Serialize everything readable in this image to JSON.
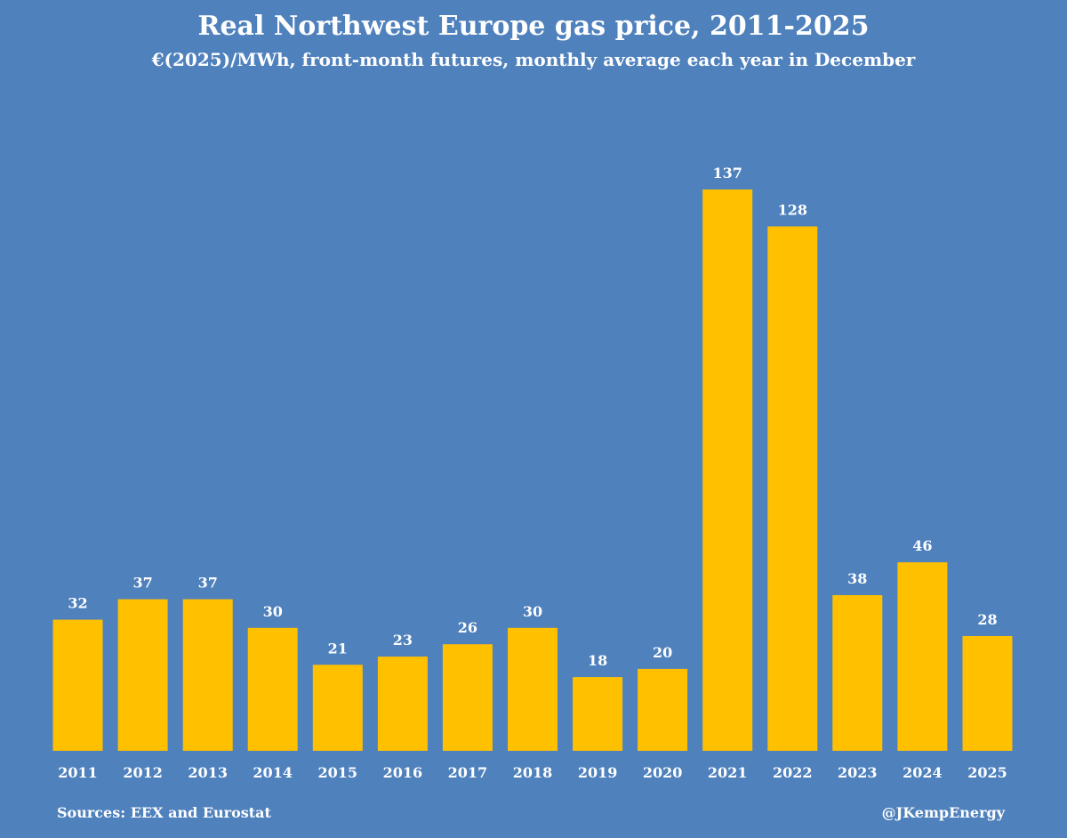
{
  "colors": {
    "background": "#4f81bd",
    "bar": "#ffc000",
    "text": "#ffffff"
  },
  "chart_data": {
    "type": "bar",
    "title": "Real Northwest Europe gas price, 2011-2025",
    "subtitle": "€(2025)/MWh, front-month futures, monthly average each year in December",
    "xlabel": "",
    "ylabel": "",
    "categories": [
      "2011",
      "2012",
      "2013",
      "2014",
      "2015",
      "2016",
      "2017",
      "2018",
      "2019",
      "2020",
      "2021",
      "2022",
      "2023",
      "2024",
      "2025"
    ],
    "values": [
      32,
      37,
      37,
      30,
      21,
      23,
      26,
      30,
      18,
      20,
      137,
      128,
      38,
      46,
      28
    ],
    "ylim": [
      0,
      137
    ],
    "grid": false,
    "legend": "none"
  },
  "footer": {
    "source": "Sources: EEX and Eurostat",
    "credit": "@JKempEnergy"
  }
}
